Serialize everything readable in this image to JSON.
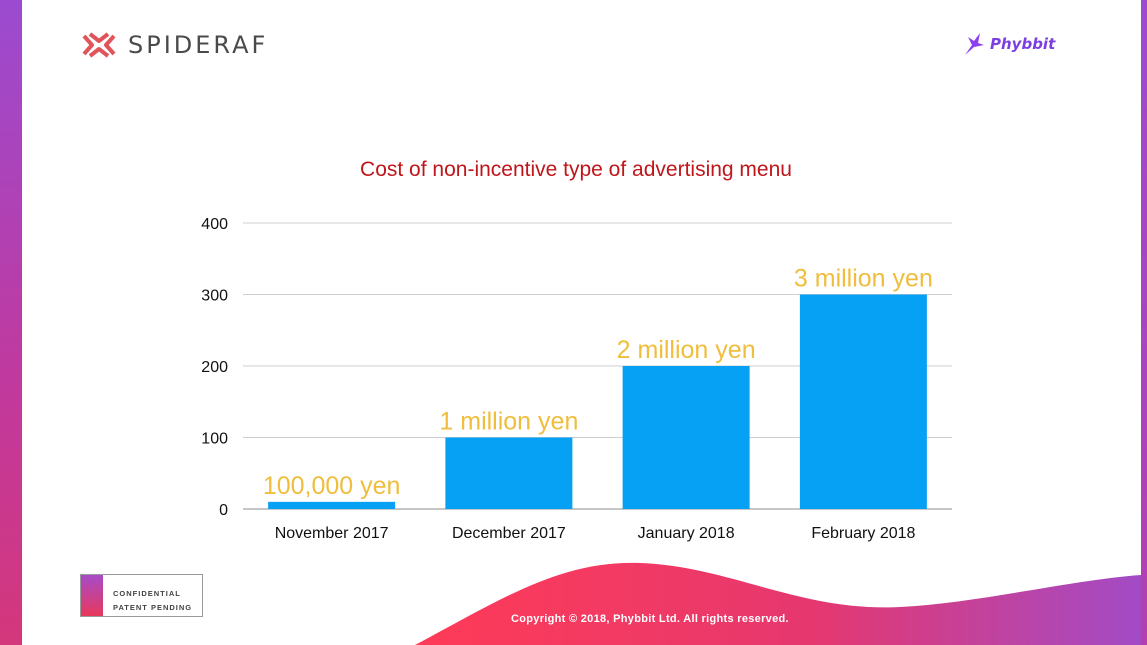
{
  "header": {
    "left_brand": "SPIDERAF",
    "right_brand": "Phybbit"
  },
  "footer": {
    "confidential_line1": "CONFIDENTIAL",
    "confidential_line2": "PATENT PENDING",
    "copyright": "Copyright © 2018, Phybbit Ltd. All rights reserved."
  },
  "colors": {
    "bar": "#06a0f4",
    "title": "#c0161b",
    "data_label": "#f0bd3c",
    "accent_purple": "#9b4bd0",
    "accent_red": "#f5365c"
  },
  "chart_data": {
    "type": "bar",
    "title": "Cost of non-incentive type of advertising menu",
    "categories": [
      "November 2017",
      "December 2017",
      "January 2018",
      "February 2018"
    ],
    "values": [
      10,
      100,
      200,
      300
    ],
    "data_labels": [
      "100,000 yen",
      "1 million yen",
      "2 million yen",
      "3 million yen"
    ],
    "yticks": [
      0,
      100,
      200,
      300,
      400
    ],
    "ylim": [
      0,
      400
    ],
    "xlabel": "",
    "ylabel": "",
    "grid": true,
    "legend": "none"
  }
}
